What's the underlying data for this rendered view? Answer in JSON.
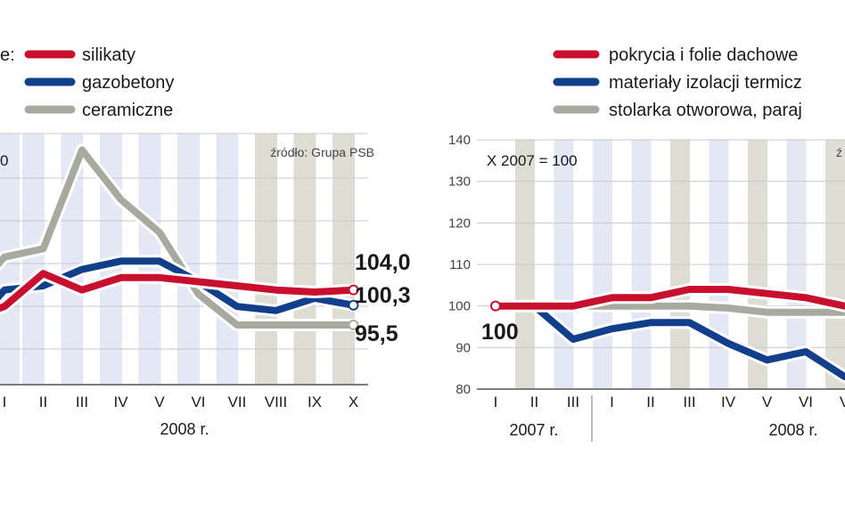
{
  "colors": {
    "red": "#c8102e",
    "blue": "#123f8c",
    "gray": "#a9aa9f",
    "bandLight": "#e4e8f5",
    "bandDark": "#deddd4"
  },
  "chart_data": [
    {
      "type": "line",
      "legend_prefix": "e:",
      "note": "0",
      "source": "źródło: Grupa PSB",
      "categories": [
        "I",
        "II",
        "III",
        "IV",
        "V",
        "VI",
        "VII",
        "VIII",
        "IX",
        "X"
      ],
      "year_label": "2008 r.",
      "series": [
        {
          "name": "silikaty",
          "color": "red",
          "values": [
            100,
            108,
            104,
            107,
            107,
            106,
            105,
            104,
            103.5,
            104.0
          ]
        },
        {
          "name": "gazobetony",
          "color": "blue",
          "values": [
            104,
            105,
            109,
            111,
            111,
            106,
            100,
            99,
            102,
            100.3
          ]
        },
        {
          "name": "ceramiczne",
          "color": "gray",
          "values": [
            112,
            114,
            138,
            126,
            118,
            103,
            95.5,
            95.5,
            95.5,
            95.5
          ]
        }
      ],
      "end_labels": [
        "104,0",
        "100,3",
        "95,5"
      ],
      "ylim": [
        81,
        142
      ]
    },
    {
      "type": "line",
      "note": "X 2007 = 100",
      "source": "ź",
      "yticks": [
        80,
        90,
        100,
        110,
        120,
        130,
        140
      ],
      "ylim": [
        80,
        140
      ],
      "categories": [
        "I",
        "II",
        "III",
        "I",
        "II",
        "III",
        "IV",
        "V",
        "VI",
        "V"
      ],
      "year_labels": [
        "2007 r.",
        "2008 r."
      ],
      "start_label": "100",
      "series": [
        {
          "name": "pokrycia i folie dachowe",
          "color": "red",
          "values": [
            100,
            100,
            100,
            102,
            102,
            104,
            104,
            103,
            102,
            100
          ]
        },
        {
          "name": "materiały izolacji termicz",
          "color": "blue",
          "values": [
            100,
            100,
            92,
            94.5,
            96,
            96,
            91,
            87,
            89,
            83
          ]
        },
        {
          "name": "stolarka otworowa, paraj",
          "color": "gray",
          "values": [
            100,
            100,
            100,
            100,
            100,
            100,
            99.5,
            98.5,
            98.5,
            98.5
          ]
        }
      ]
    }
  ]
}
